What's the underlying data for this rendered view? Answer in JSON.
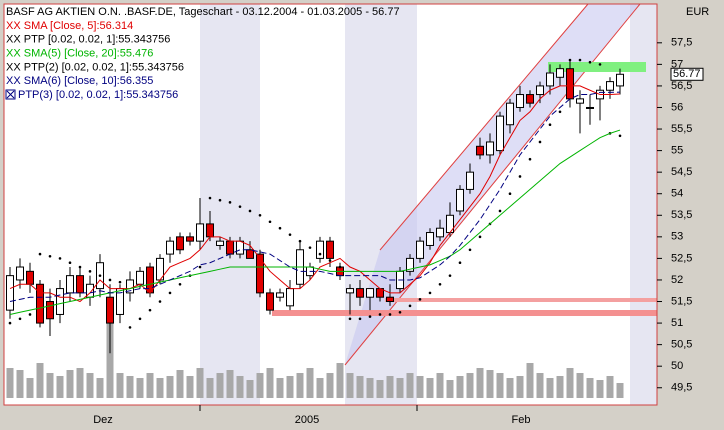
{
  "chart_data": {
    "type": "candlestick",
    "title": "BASF AG AKTIEN O.N. .BASF.DE, Tageschart - 03.12.2004 - 01.03.2005 - 56.77",
    "currency": "EUR",
    "last_price": {
      "value": 56.77,
      "label": "56.77"
    },
    "x_labels": [
      "Dez",
      "2005",
      "Feb"
    ],
    "ylim": [
      49.1,
      58.4
    ],
    "yticks": [
      {
        "value": 49.5,
        "label": "49,5"
      },
      50,
      {
        "value": 50.5,
        "label": "50,5"
      },
      51,
      {
        "value": 51.5,
        "label": "51,5"
      },
      52,
      {
        "value": 52.5,
        "label": "52,5"
      },
      53,
      {
        "value": 53.5,
        "label": "53,5"
      },
      54,
      {
        "value": 54.5,
        "label": "54,5"
      },
      55,
      {
        "value": 55.5,
        "label": "55,5"
      },
      56,
      {
        "value": 56.5,
        "label": "56,5"
      },
      57,
      {
        "value": 57.5,
        "label": "57,5"
      }
    ],
    "open": [
      51.3,
      52.0,
      52.2,
      51.9,
      51.5,
      51.2,
      51.7,
      52.1,
      51.6,
      51.8,
      51.6,
      51.2,
      51.7,
      51.9,
      52.3,
      52.0,
      52.6,
      53.0,
      53.0,
      52.9,
      53.3,
      52.8,
      52.9,
      52.6,
      52.7,
      52.6,
      51.7,
      51.6,
      51.4,
      51.9,
      52.1,
      52.5,
      52.9,
      52.3,
      51.7,
      51.8,
      51.6,
      51.8,
      51.6,
      51.8,
      52.2,
      52.5,
      52.8,
      53.0,
      53.1,
      53.6,
      54.1,
      55.1,
      54.9,
      55.0,
      55.6,
      56.0,
      56.3,
      56.3,
      56.5,
      56.7,
      56.9,
      56.1,
      56.0,
      56.2,
      56.4,
      56.5
    ],
    "high": [
      52.3,
      52.5,
      52.4,
      52.0,
      51.8,
      52.0,
      52.3,
      52.3,
      52.1,
      52.6,
      51.9,
      51.9,
      52.2,
      52.3,
      52.4,
      52.6,
      53.0,
      53.1,
      53.1,
      53.9,
      53.6,
      53.0,
      53.0,
      53.0,
      52.9,
      52.7,
      51.8,
      51.8,
      52.0,
      52.9,
      52.4,
      53.0,
      53.0,
      52.4,
      51.9,
      52.0,
      51.8,
      51.8,
      51.9,
      52.3,
      52.6,
      53.0,
      53.2,
      53.4,
      53.8,
      54.2,
      54.7,
      55.3,
      55.4,
      55.9,
      56.2,
      56.5,
      56.4,
      56.6,
      57.0,
      57.0,
      57.1,
      56.4,
      56.3,
      56.5,
      56.7,
      56.9
    ],
    "low": [
      51.1,
      51.8,
      51.7,
      50.9,
      50.7,
      51.0,
      51.5,
      51.6,
      51.4,
      51.6,
      50.3,
      51.0,
      51.5,
      51.8,
      51.6,
      51.9,
      52.4,
      52.6,
      52.8,
      52.7,
      52.9,
      52.7,
      52.5,
      52.5,
      52.5,
      51.6,
      51.2,
      51.5,
      51.3,
      51.8,
      52.0,
      52.4,
      52.3,
      52.0,
      51.2,
      51.4,
      51.3,
      51.5,
      51.4,
      51.7,
      52.1,
      52.4,
      52.7,
      52.9,
      53.0,
      53.5,
      54.0,
      54.8,
      54.7,
      54.9,
      55.4,
      55.9,
      56.0,
      56.1,
      56.3,
      56.5,
      56.0,
      55.4,
      55.6,
      55.7,
      56.2,
      56.3
    ],
    "close": [
      52.1,
      52.3,
      51.9,
      51.0,
      51.1,
      51.8,
      52.1,
      51.7,
      51.9,
      52.4,
      51.0,
      51.8,
      52.0,
      52.2,
      51.7,
      52.5,
      52.9,
      52.7,
      52.9,
      53.3,
      53.0,
      52.9,
      52.6,
      52.9,
      52.5,
      51.7,
      51.3,
      51.7,
      51.8,
      52.7,
      52.3,
      52.9,
      52.5,
      52.1,
      51.8,
      51.6,
      51.8,
      51.6,
      51.5,
      52.2,
      52.5,
      52.9,
      53.1,
      53.2,
      53.5,
      54.1,
      54.5,
      54.9,
      55.2,
      55.8,
      56.1,
      56.3,
      56.1,
      56.5,
      56.8,
      56.9,
      56.2,
      56.2,
      56.0,
      56.4,
      56.6,
      56.77
    ],
    "volume": [
      30,
      28,
      20,
      35,
      25,
      22,
      28,
      30,
      25,
      20,
      85,
      25,
      22,
      20,
      25,
      20,
      22,
      28,
      22,
      30,
      20,
      25,
      28,
      22,
      18,
      25,
      30,
      20,
      22,
      25,
      30,
      20,
      25,
      35,
      25,
      22,
      20,
      18,
      22,
      20,
      25,
      22,
      20,
      25,
      18,
      22,
      25,
      30,
      28,
      25,
      20,
      22,
      35,
      25,
      20,
      22,
      30,
      25,
      20,
      18,
      22,
      15
    ],
    "vlim": [
      0,
      100
    ],
    "series": [
      {
        "name": "XX SMA [Close, 5]:56.314",
        "color": "#e00000",
        "style": "line",
        "values": [
          51.8,
          51.9,
          51.9,
          51.7,
          51.7,
          51.6,
          51.6,
          51.5,
          51.7,
          52.0,
          51.8,
          51.8,
          51.8,
          51.9,
          51.7,
          52.0,
          52.3,
          52.4,
          52.5,
          52.7,
          53.0,
          53.0,
          52.9,
          52.9,
          52.8,
          52.5,
          52.2,
          52.0,
          51.8,
          51.8,
          52.0,
          52.3,
          52.4,
          52.5,
          52.3,
          52.2,
          52.0,
          51.8,
          51.7,
          51.7,
          51.9,
          52.1,
          52.4,
          52.8,
          53.1,
          53.4,
          53.7,
          54.0,
          54.4,
          54.9,
          55.3,
          55.7,
          55.9,
          56.2,
          56.4,
          56.5,
          56.5,
          56.5,
          56.4,
          56.3,
          56.3,
          56.314
        ]
      },
      {
        "name": "XX PTP [0.02, 0.02, 1]:55.343756",
        "color": "#000000",
        "style": "dots",
        "values": [
          51.0,
          51.1,
          51.2,
          52.6,
          52.55,
          52.5,
          52.4,
          52.3,
          52.2,
          52.1,
          52.0,
          51.95,
          50.9,
          51.1,
          51.3,
          51.5,
          51.7,
          51.9,
          52.1,
          52.3,
          53.9,
          53.85,
          53.8,
          53.7,
          53.6,
          53.5,
          53.35,
          53.2,
          53.05,
          52.9,
          52.75,
          52.6,
          52.45,
          52.3,
          51.1,
          51.1,
          51.15,
          51.2,
          51.2,
          51.25,
          51.4,
          51.55,
          51.7,
          51.9,
          52.1,
          52.4,
          52.7,
          53.0,
          53.3,
          53.6,
          54.0,
          54.4,
          54.8,
          55.2,
          55.6,
          55.9,
          57.1,
          57.1,
          57.05,
          57.0,
          55.4,
          55.343756
        ]
      },
      {
        "name": "XX SMA(5) [Close, 20]:55.476",
        "color": "#00b400",
        "style": "line",
        "values": [
          51.2,
          51.25,
          51.3,
          51.35,
          51.4,
          51.45,
          51.5,
          51.55,
          51.6,
          51.65,
          51.7,
          51.75,
          51.8,
          51.85,
          51.9,
          51.95,
          52.0,
          52.05,
          52.1,
          52.15,
          52.2,
          52.25,
          52.3,
          52.3,
          52.3,
          52.3,
          52.3,
          52.3,
          52.3,
          52.3,
          52.3,
          52.25,
          52.2,
          52.2,
          52.2,
          52.2,
          52.2,
          52.2,
          52.2,
          52.2,
          52.25,
          52.3,
          52.35,
          52.45,
          52.55,
          52.7,
          52.9,
          53.1,
          53.3,
          53.5,
          53.7,
          53.9,
          54.1,
          54.3,
          54.5,
          54.7,
          54.85,
          55.0,
          55.15,
          55.3,
          55.4,
          55.476
        ]
      },
      {
        "name": "XX PTP(2) [0.02, 0.02, 1]:55.343756",
        "color": "#000000"
      },
      {
        "name": "XX SMA(6) [Close, 10]:56.355",
        "color": "#000080",
        "style": "dashed",
        "values": [
          51.5,
          51.55,
          51.6,
          51.6,
          51.6,
          51.65,
          51.7,
          51.7,
          51.7,
          51.75,
          51.7,
          51.7,
          51.75,
          51.8,
          51.8,
          51.9,
          52.0,
          52.1,
          52.2,
          52.35,
          52.4,
          52.5,
          52.6,
          52.7,
          52.7,
          52.65,
          52.6,
          52.45,
          52.3,
          52.2,
          52.2,
          52.2,
          52.15,
          52.1,
          52.1,
          52.1,
          52.1,
          52.1,
          52.0,
          52.0,
          52.0,
          52.05,
          52.2,
          52.35,
          52.55,
          52.8,
          53.1,
          53.4,
          53.75,
          54.1,
          54.5,
          54.9,
          55.2,
          55.5,
          55.8,
          56.0,
          56.2,
          56.3,
          56.3,
          56.35,
          56.35,
          56.355
        ]
      },
      {
        "name": "PTP(3) [0.02, 0.02, 1]:55.343756",
        "color": "#000080"
      }
    ]
  }
}
